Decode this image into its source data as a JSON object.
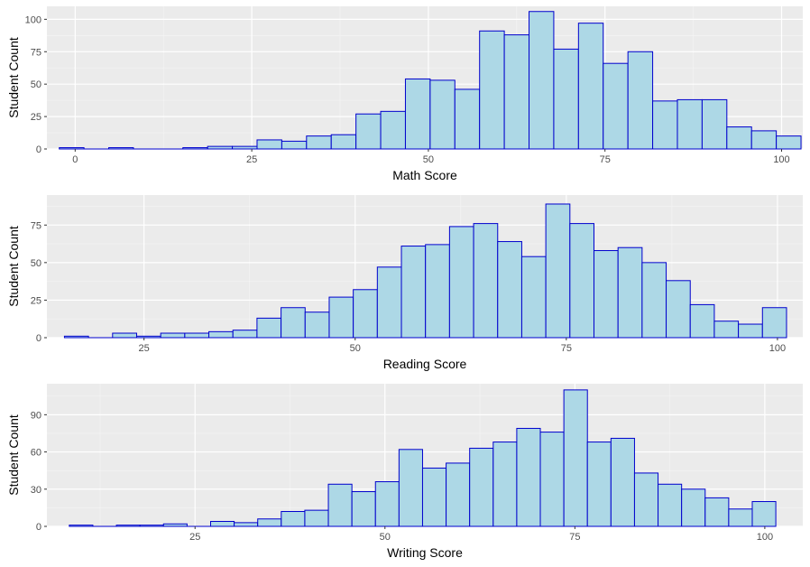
{
  "chart_data": [
    {
      "type": "bar",
      "xlabel": "Math Score",
      "ylabel": "Student Count",
      "xlim": [
        -4,
        103
      ],
      "ylim": [
        0,
        110
      ],
      "xticks": [
        0,
        25,
        50,
        75,
        100
      ],
      "yticks": [
        0,
        25,
        50,
        75,
        100
      ],
      "bin_width": 3.5,
      "bins": [
        {
          "x": -0.5,
          "count": 1
        },
        {
          "x": 3,
          "count": 0
        },
        {
          "x": 6.5,
          "count": 1
        },
        {
          "x": 10,
          "count": 0
        },
        {
          "x": 13.5,
          "count": 0
        },
        {
          "x": 17,
          "count": 1
        },
        {
          "x": 20.5,
          "count": 2
        },
        {
          "x": 24,
          "count": 2
        },
        {
          "x": 27.5,
          "count": 7
        },
        {
          "x": 31,
          "count": 6
        },
        {
          "x": 34.5,
          "count": 10
        },
        {
          "x": 38,
          "count": 11
        },
        {
          "x": 41.5,
          "count": 27
        },
        {
          "x": 45,
          "count": 29
        },
        {
          "x": 48.5,
          "count": 54
        },
        {
          "x": 52,
          "count": 53
        },
        {
          "x": 55.5,
          "count": 46
        },
        {
          "x": 59,
          "count": 91
        },
        {
          "x": 62.5,
          "count": 88
        },
        {
          "x": 66,
          "count": 106
        },
        {
          "x": 69.5,
          "count": 77
        },
        {
          "x": 73,
          "count": 97
        },
        {
          "x": 76.5,
          "count": 66
        },
        {
          "x": 80,
          "count": 75
        },
        {
          "x": 83.5,
          "count": 37
        },
        {
          "x": 87,
          "count": 38
        },
        {
          "x": 90.5,
          "count": 38
        },
        {
          "x": 94,
          "count": 17
        },
        {
          "x": 97.5,
          "count": 14
        },
        {
          "x": 101,
          "count": 10
        }
      ]
    },
    {
      "type": "bar",
      "xlabel": "Reading Score",
      "ylabel": "Student Count",
      "xlim": [
        13.5,
        103
      ],
      "ylim": [
        0,
        95
      ],
      "xticks": [
        25,
        50,
        75,
        100
      ],
      "yticks": [
        0,
        25,
        50,
        75
      ],
      "bin_width": 2.85,
      "bins": [
        {
          "x": 17,
          "count": 1
        },
        {
          "x": 19.85,
          "count": 0
        },
        {
          "x": 22.7,
          "count": 3
        },
        {
          "x": 25.55,
          "count": 1
        },
        {
          "x": 28.4,
          "count": 3
        },
        {
          "x": 31.25,
          "count": 3
        },
        {
          "x": 34.1,
          "count": 4
        },
        {
          "x": 36.95,
          "count": 5
        },
        {
          "x": 39.8,
          "count": 13
        },
        {
          "x": 42.65,
          "count": 20
        },
        {
          "x": 45.5,
          "count": 17
        },
        {
          "x": 48.35,
          "count": 27
        },
        {
          "x": 51.2,
          "count": 32
        },
        {
          "x": 54.05,
          "count": 47
        },
        {
          "x": 56.9,
          "count": 61
        },
        {
          "x": 59.75,
          "count": 62
        },
        {
          "x": 62.6,
          "count": 74
        },
        {
          "x": 65.45,
          "count": 76
        },
        {
          "x": 68.3,
          "count": 64
        },
        {
          "x": 71.15,
          "count": 54
        },
        {
          "x": 74,
          "count": 89
        },
        {
          "x": 76.85,
          "count": 76
        },
        {
          "x": 79.7,
          "count": 58
        },
        {
          "x": 82.55,
          "count": 60
        },
        {
          "x": 85.4,
          "count": 50
        },
        {
          "x": 88.25,
          "count": 38
        },
        {
          "x": 91.1,
          "count": 22
        },
        {
          "x": 93.95,
          "count": 11
        },
        {
          "x": 96.8,
          "count": 9
        },
        {
          "x": 99.65,
          "count": 20
        }
      ]
    },
    {
      "type": "bar",
      "xlabel": "Writing Score",
      "ylabel": "Student Count",
      "xlim": [
        5.5,
        105
      ],
      "ylim": [
        0,
        115
      ],
      "xticks": [
        25,
        50,
        75,
        100
      ],
      "yticks": [
        0,
        30,
        60,
        90
      ],
      "bin_width": 3.1,
      "bins": [
        {
          "x": 10,
          "count": 1
        },
        {
          "x": 13.1,
          "count": 0
        },
        {
          "x": 16.2,
          "count": 1
        },
        {
          "x": 19.3,
          "count": 1
        },
        {
          "x": 22.4,
          "count": 2
        },
        {
          "x": 25.5,
          "count": 0
        },
        {
          "x": 28.6,
          "count": 4
        },
        {
          "x": 31.7,
          "count": 3
        },
        {
          "x": 34.8,
          "count": 6
        },
        {
          "x": 37.9,
          "count": 12
        },
        {
          "x": 41,
          "count": 13
        },
        {
          "x": 44.1,
          "count": 34
        },
        {
          "x": 47.2,
          "count": 28
        },
        {
          "x": 50.3,
          "count": 36
        },
        {
          "x": 53.4,
          "count": 62
        },
        {
          "x": 56.5,
          "count": 47
        },
        {
          "x": 59.6,
          "count": 51
        },
        {
          "x": 62.7,
          "count": 63
        },
        {
          "x": 65.8,
          "count": 68
        },
        {
          "x": 68.9,
          "count": 79
        },
        {
          "x": 72,
          "count": 76
        },
        {
          "x": 75.1,
          "count": 110
        },
        {
          "x": 78.2,
          "count": 68
        },
        {
          "x": 81.3,
          "count": 71
        },
        {
          "x": 84.4,
          "count": 43
        },
        {
          "x": 87.5,
          "count": 34
        },
        {
          "x": 90.6,
          "count": 30
        },
        {
          "x": 93.7,
          "count": 23
        },
        {
          "x": 96.8,
          "count": 14
        },
        {
          "x": 99.9,
          "count": 20
        }
      ]
    }
  ],
  "colors": {
    "panel_background": "#ebebeb",
    "grid_major": "#ffffff",
    "grid_minor": "#f5f5f5",
    "bar_fill": "#add8e6",
    "bar_stroke": "#0000cd",
    "tick_text": "#4d4d4d"
  }
}
